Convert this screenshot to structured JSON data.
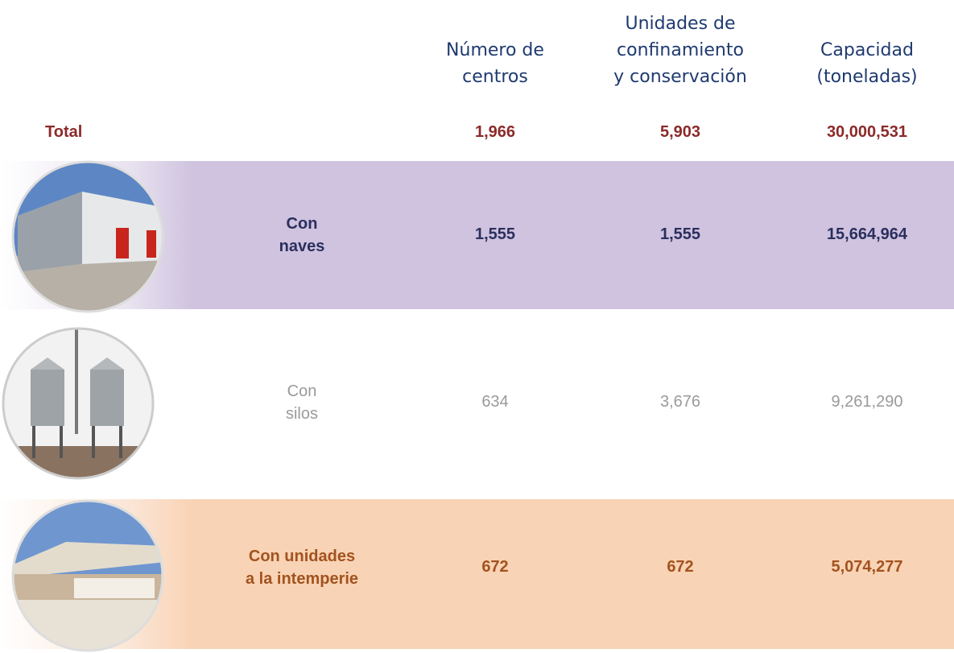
{
  "header": {
    "columns": [
      [
        "Número de",
        "centros"
      ],
      [
        "Unidades de",
        "confinamiento",
        "y conservación"
      ],
      [
        "Capacidad",
        "(toneladas)"
      ]
    ]
  },
  "total": {
    "label": "Total",
    "values": [
      "1,966",
      "5,903",
      "30,000,531"
    ]
  },
  "rows": [
    {
      "label": [
        "Con",
        "naves"
      ],
      "values": [
        "1,555",
        "1,555",
        "15,664,964"
      ]
    },
    {
      "label": [
        "Con",
        "silos"
      ],
      "values": [
        "634",
        "3,676",
        "9,261,290"
      ]
    },
    {
      "label": [
        "Con unidades",
        "a la intemperie"
      ],
      "values": [
        "672",
        "672",
        "5,074,277"
      ]
    }
  ]
}
